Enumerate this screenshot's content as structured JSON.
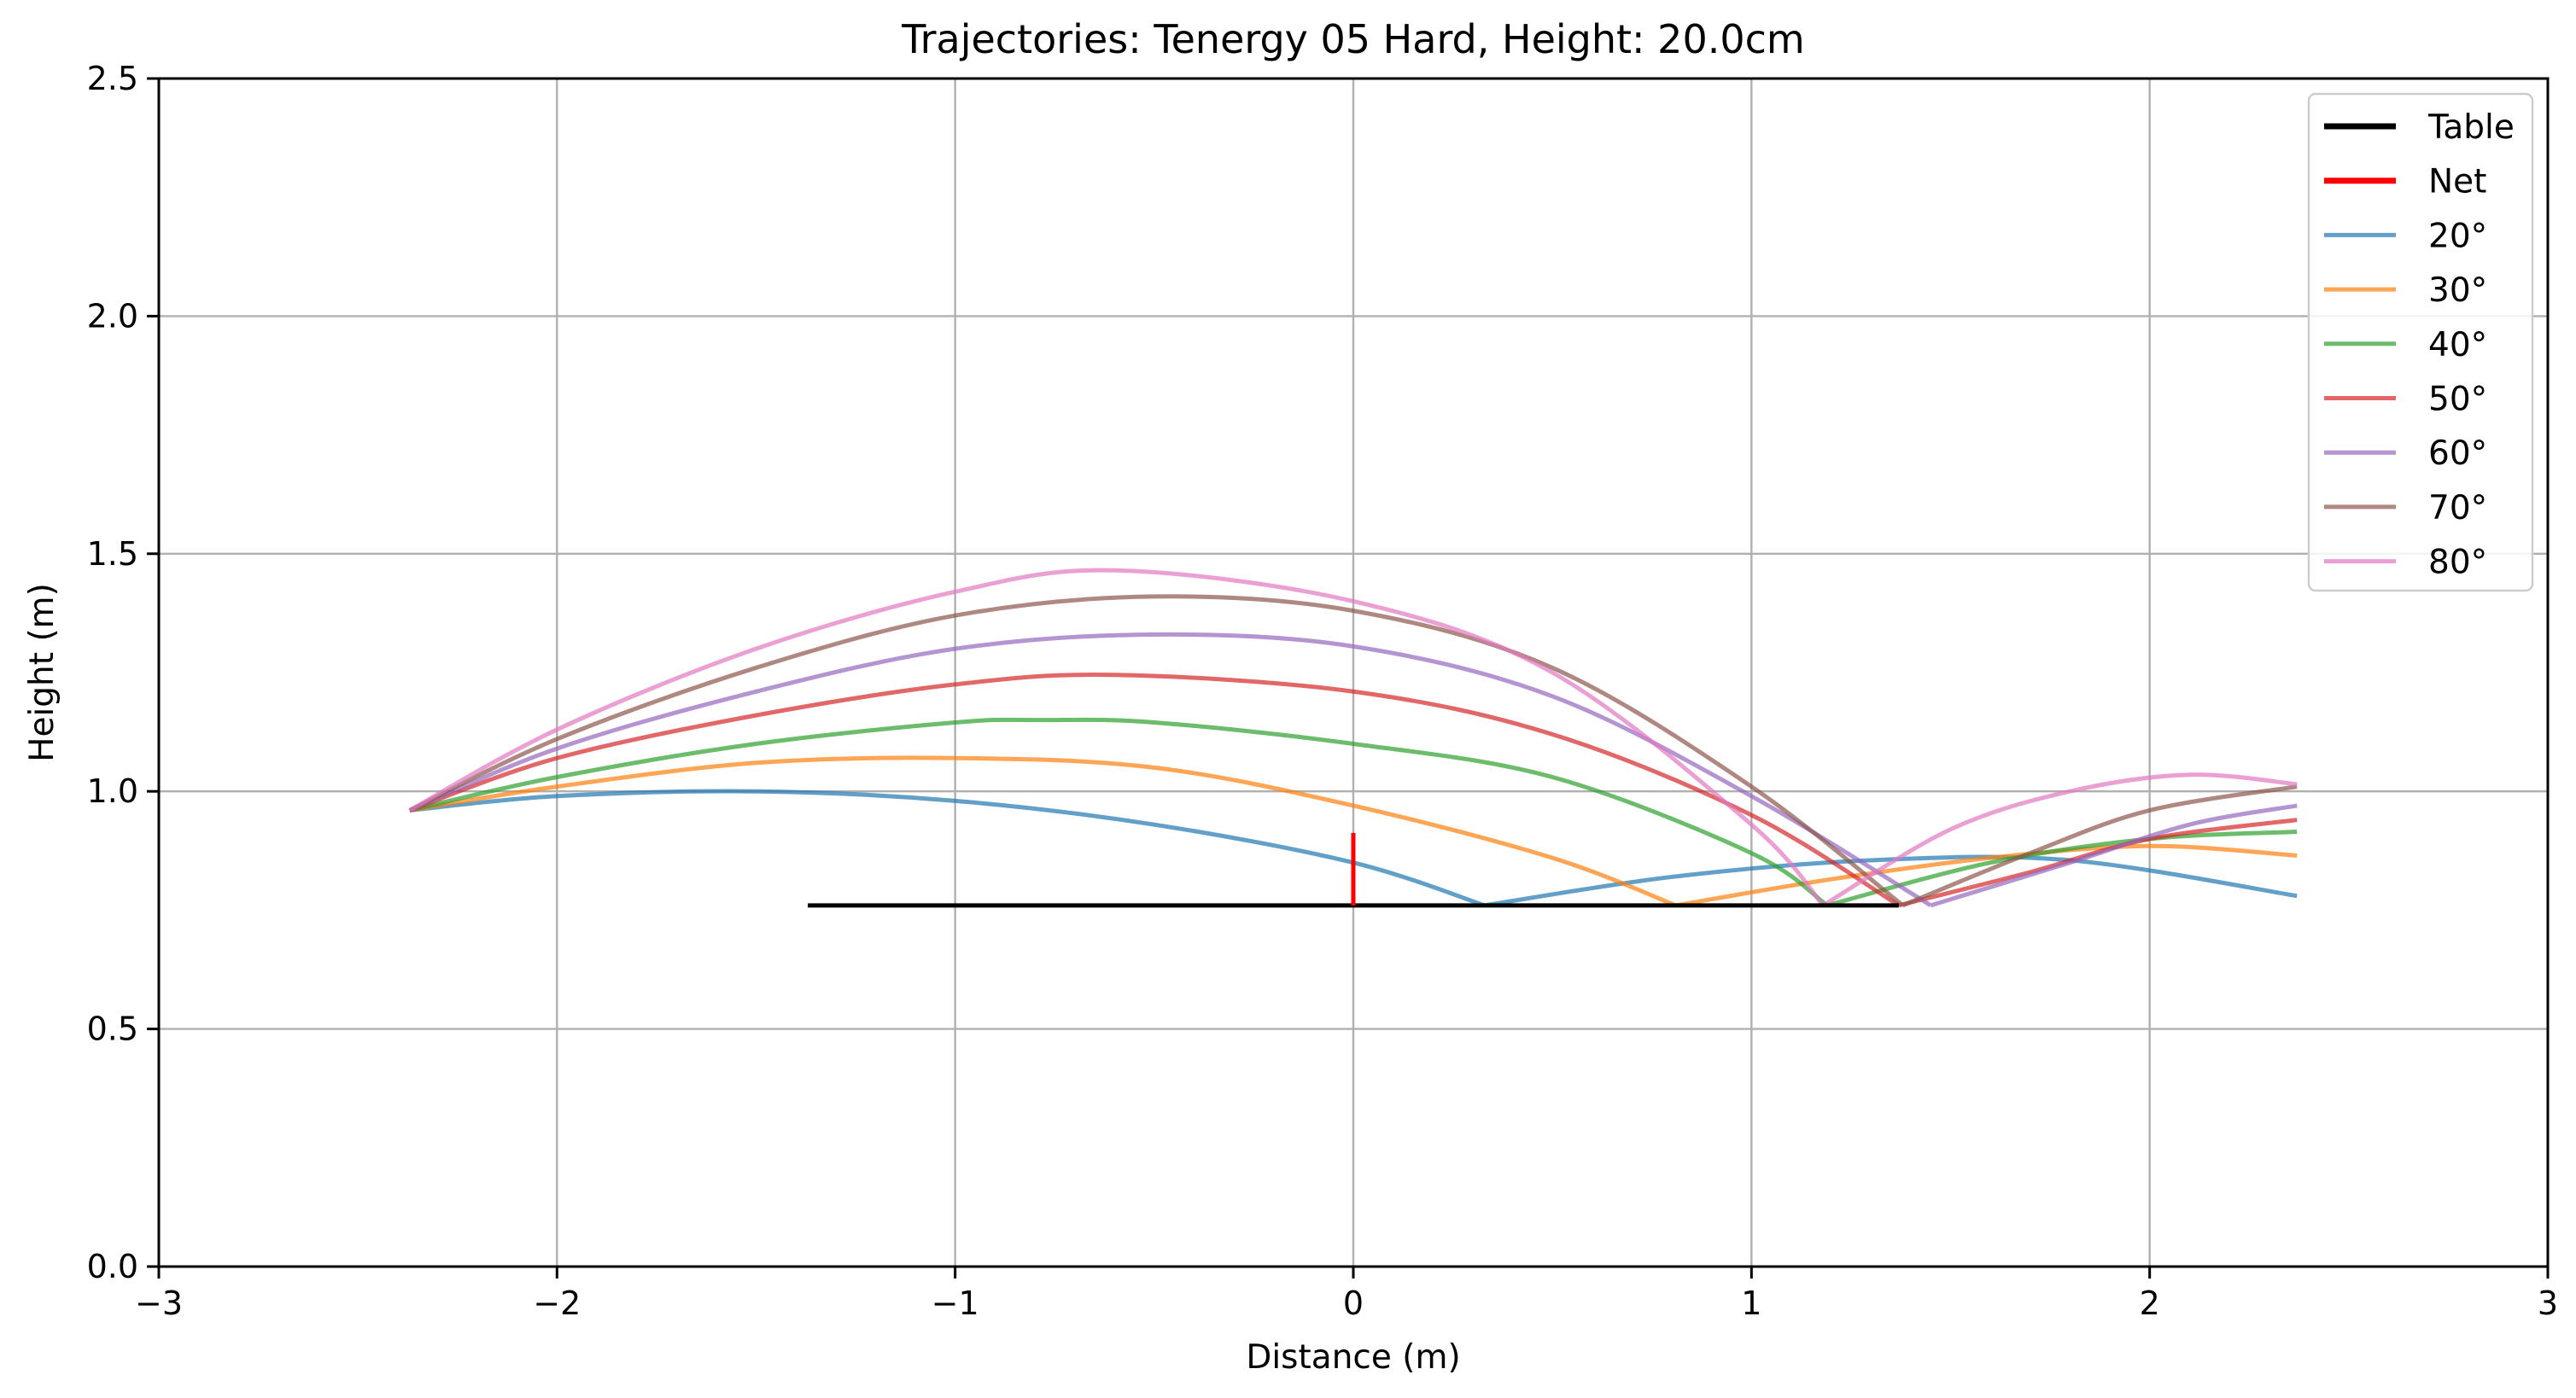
{
  "chart_data": {
    "type": "line",
    "title": "Trajectories: Tenergy 05 Hard, Height: 20.0cm",
    "xlabel": "Distance (m)",
    "ylabel": "Height (m)",
    "xlim": [
      -3,
      3
    ],
    "ylim": [
      0,
      2.5
    ],
    "x_ticks": [
      -3,
      -2,
      -1,
      0,
      1,
      2,
      3
    ],
    "x_tick_labels": [
      "−3",
      "−2",
      "−1",
      "0",
      "1",
      "2",
      "3"
    ],
    "y_ticks": [
      0,
      0.5,
      1,
      1.5,
      2,
      2.5
    ],
    "y_tick_labels": [
      "0.0",
      "0.5",
      "1.0",
      "1.5",
      "2.0",
      "2.5"
    ],
    "grid": true,
    "legend_position": "top-right",
    "series": [
      {
        "name": "Table",
        "color": "#000000",
        "opacity": 1.0,
        "width": "thick",
        "x": [
          -1.37,
          1.37
        ],
        "y": [
          0.76,
          0.76
        ]
      },
      {
        "name": "Net",
        "color": "#ff0000",
        "opacity": 1.0,
        "width": "thick",
        "x": [
          0,
          0
        ],
        "y": [
          0.76,
          0.9125
        ]
      },
      {
        "name": "20°",
        "color": "#1f77b4",
        "opacity": 0.7,
        "width": "normal",
        "x": [
          -2.37,
          -2.0,
          -1.5,
          -1.0,
          -0.5,
          0.0,
          0.33,
          0.8,
          1.3,
          1.8,
          2.37
        ],
        "y": [
          0.96,
          0.99,
          1.0,
          0.98,
          0.93,
          0.85,
          0.76,
          0.82,
          0.855,
          0.855,
          0.78
        ]
      },
      {
        "name": "30°",
        "color": "#ff7f0e",
        "opacity": 0.7,
        "width": "normal",
        "x": [
          -2.37,
          -2.0,
          -1.5,
          -1.0,
          -0.5,
          0.0,
          0.5,
          0.81,
          1.2,
          1.6,
          2.0,
          2.37
        ],
        "y": [
          0.96,
          1.01,
          1.06,
          1.07,
          1.05,
          0.97,
          0.86,
          0.76,
          0.815,
          0.86,
          0.885,
          0.865
        ]
      },
      {
        "name": "40°",
        "color": "#2ca02c",
        "opacity": 0.7,
        "width": "normal",
        "x": [
          -2.37,
          -2.0,
          -1.5,
          -1.0,
          -0.78,
          -0.5,
          0.0,
          0.5,
          1.0,
          1.19,
          1.6,
          2.0,
          2.37
        ],
        "y": [
          0.96,
          1.03,
          1.1,
          1.145,
          1.15,
          1.145,
          1.1,
          1.03,
          0.87,
          0.76,
          0.85,
          0.9,
          0.915
        ]
      },
      {
        "name": "50°",
        "color": "#d62728",
        "opacity": 0.7,
        "width": "normal",
        "x": [
          -2.37,
          -2.0,
          -1.5,
          -1.0,
          -0.6,
          0.0,
          0.5,
          1.0,
          1.37,
          1.7,
          2.0,
          2.37
        ],
        "y": [
          0.96,
          1.07,
          1.16,
          1.225,
          1.245,
          1.21,
          1.12,
          0.95,
          0.76,
          0.83,
          0.9,
          0.94
        ]
      },
      {
        "name": "60°",
        "color": "#9467bd",
        "opacity": 0.7,
        "width": "normal",
        "x": [
          -2.37,
          -2.0,
          -1.5,
          -1.0,
          -0.5,
          0.0,
          0.5,
          1.0,
          1.45,
          1.8,
          2.1,
          2.37
        ],
        "y": [
          0.96,
          1.09,
          1.21,
          1.3,
          1.33,
          1.305,
          1.2,
          0.99,
          0.76,
          0.85,
          0.93,
          0.97
        ]
      },
      {
        "name": "70°",
        "color": "#8c564b",
        "opacity": 0.7,
        "width": "normal",
        "x": [
          -2.37,
          -2.0,
          -1.5,
          -1.0,
          -0.5,
          0.0,
          0.5,
          1.0,
          1.38,
          1.7,
          2.0,
          2.37
        ],
        "y": [
          0.96,
          1.11,
          1.26,
          1.37,
          1.41,
          1.38,
          1.26,
          1.01,
          0.76,
          0.87,
          0.96,
          1.01
        ]
      },
      {
        "name": "80°",
        "color": "#e377c2",
        "opacity": 0.7,
        "width": "normal",
        "x": [
          -2.37,
          -2.0,
          -1.5,
          -1.0,
          -0.6,
          0.0,
          0.5,
          1.0,
          1.18,
          1.5,
          1.8,
          2.1,
          2.37
        ],
        "y": [
          0.96,
          1.13,
          1.3,
          1.42,
          1.465,
          1.4,
          1.25,
          0.93,
          0.76,
          0.92,
          1.0,
          1.035,
          1.015
        ]
      }
    ]
  }
}
